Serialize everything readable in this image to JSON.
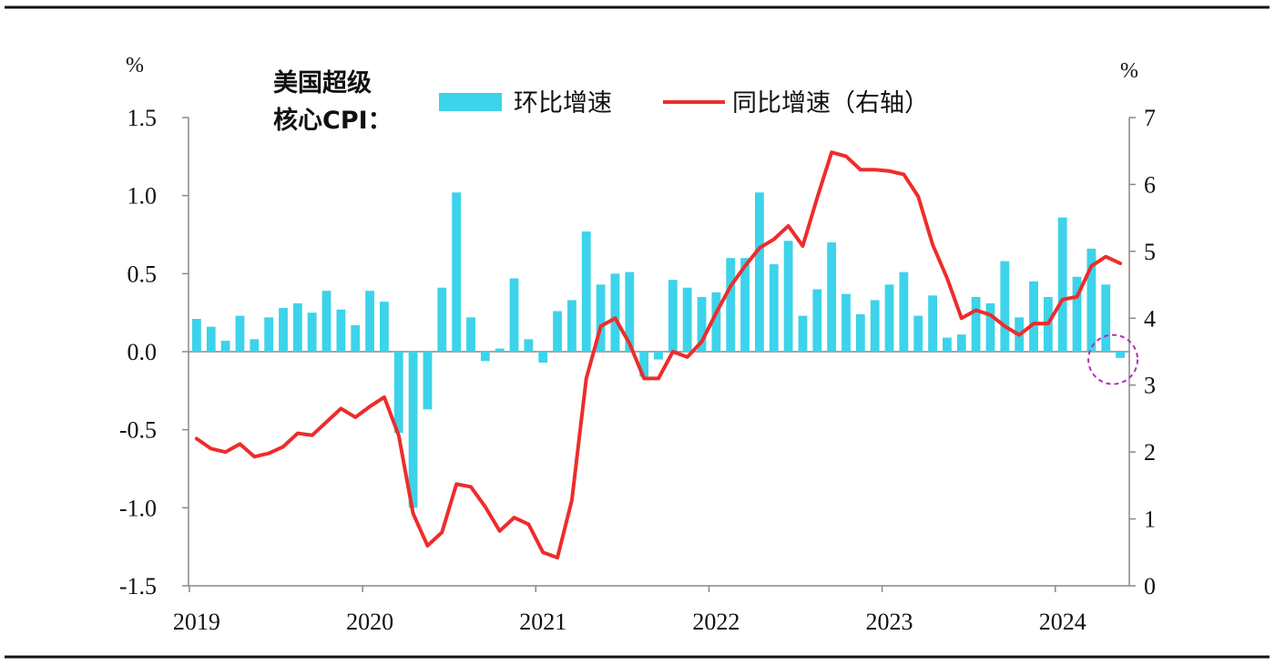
{
  "chart_data": {
    "type": "bar+line",
    "title_lines": [
      "美国超级",
      "核心CPI："
    ],
    "left_axis": {
      "unit": "%",
      "ylim": [
        -1.5,
        1.5
      ],
      "ticks": [
        1.5,
        1.0,
        0.5,
        0.0,
        -0.5,
        -1.0,
        -1.5
      ],
      "tick_labels": [
        "1.5",
        "1.0",
        "0.5",
        "0.0",
        "-0.5",
        "-1.0",
        "-1.5"
      ]
    },
    "right_axis": {
      "unit": "%",
      "ylim": [
        0,
        7
      ],
      "ticks": [
        7,
        6,
        5,
        4,
        3,
        2,
        1,
        0
      ],
      "tick_labels": [
        "7",
        "6",
        "5",
        "4",
        "3",
        "2",
        "1",
        "0"
      ]
    },
    "x_axis": {
      "start": "2019-01",
      "end": "2024-05",
      "year_labels": [
        "2019",
        "2020",
        "2021",
        "2022",
        "2023",
        "2024"
      ]
    },
    "months": [
      "2019-01",
      "2019-02",
      "2019-03",
      "2019-04",
      "2019-05",
      "2019-06",
      "2019-07",
      "2019-08",
      "2019-09",
      "2019-10",
      "2019-11",
      "2019-12",
      "2020-01",
      "2020-02",
      "2020-03",
      "2020-04",
      "2020-05",
      "2020-06",
      "2020-07",
      "2020-08",
      "2020-09",
      "2020-10",
      "2020-11",
      "2020-12",
      "2021-01",
      "2021-02",
      "2021-03",
      "2021-04",
      "2021-05",
      "2021-06",
      "2021-07",
      "2021-08",
      "2021-09",
      "2021-10",
      "2021-11",
      "2021-12",
      "2022-01",
      "2022-02",
      "2022-03",
      "2022-04",
      "2022-05",
      "2022-06",
      "2022-07",
      "2022-08",
      "2022-09",
      "2022-10",
      "2022-11",
      "2022-12",
      "2023-01",
      "2023-02",
      "2023-03",
      "2023-04",
      "2023-05",
      "2023-06",
      "2023-07",
      "2023-08",
      "2023-09",
      "2023-10",
      "2023-11",
      "2023-12",
      "2024-01",
      "2024-02",
      "2024-03",
      "2024-04",
      "2024-05"
    ],
    "series": [
      {
        "name": "环比增速",
        "axis": "left",
        "kind": "bar",
        "color": "#3dd3ea",
        "values": [
          0.21,
          0.16,
          0.07,
          0.23,
          0.08,
          0.22,
          0.28,
          0.31,
          0.25,
          0.39,
          0.27,
          0.17,
          0.39,
          0.32,
          -0.52,
          -1.0,
          -0.37,
          0.41,
          1.02,
          0.22,
          -0.06,
          0.02,
          0.47,
          0.08,
          -0.07,
          0.26,
          0.33,
          0.77,
          0.43,
          0.5,
          0.51,
          -0.16,
          -0.05,
          0.46,
          0.41,
          0.35,
          0.38,
          0.6,
          0.6,
          1.02,
          0.56,
          0.71,
          0.23,
          0.4,
          0.7,
          0.37,
          0.24,
          0.33,
          0.43,
          0.51,
          0.23,
          0.36,
          0.09,
          0.11,
          0.35,
          0.31,
          0.58,
          0.22,
          0.45,
          0.35,
          0.86,
          0.48,
          0.66,
          0.43,
          -0.04
        ]
      },
      {
        "name": "同比增速（右轴）",
        "axis": "right",
        "kind": "line",
        "color": "#ee2c2c",
        "values": [
          2.2,
          2.05,
          2.0,
          2.12,
          1.93,
          1.98,
          2.08,
          2.28,
          2.25,
          2.45,
          2.65,
          2.52,
          2.68,
          2.82,
          2.25,
          1.08,
          0.6,
          0.8,
          1.52,
          1.48,
          1.18,
          0.82,
          1.02,
          0.92,
          0.5,
          0.42,
          1.28,
          3.1,
          3.88,
          4.0,
          3.62,
          3.1,
          3.1,
          3.5,
          3.42,
          3.65,
          4.08,
          4.48,
          4.78,
          5.05,
          5.18,
          5.38,
          5.08,
          5.8,
          6.48,
          6.42,
          6.22,
          6.22,
          6.2,
          6.15,
          5.82,
          5.1,
          4.6,
          4.0,
          4.12,
          4.05,
          3.88,
          3.75,
          3.92,
          3.92,
          4.28,
          4.32,
          4.78,
          4.92,
          4.82
        ]
      }
    ],
    "annotations": [
      {
        "kind": "dashed-circle",
        "color": "#b030b0",
        "at_month": "2024-05"
      }
    ]
  }
}
